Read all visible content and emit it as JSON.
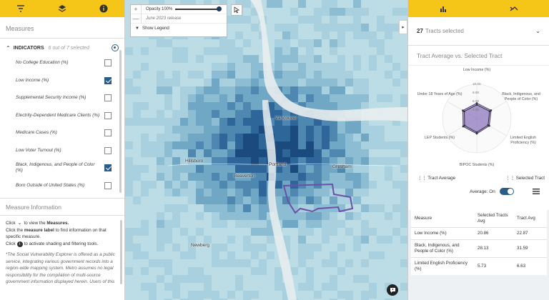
{
  "left": {
    "measures_title": "Measures",
    "indicators_title": "INDICATORS",
    "indicators_count": "6 out of 7 selected",
    "indicators": [
      {
        "label": "No College Education (%)",
        "checked": false
      },
      {
        "label": "Low Income (%)",
        "checked": true
      },
      {
        "label": "Supplemental Security Income (%)",
        "checked": false
      },
      {
        "label": "Electrity-Dependent Medicare Clients (%)",
        "checked": false
      },
      {
        "label": "Medicare Cases (%)",
        "checked": false
      },
      {
        "label": "Low Voter Turnout (%)",
        "checked": false
      },
      {
        "label": "Black, Indigenous, and People of Color (%)",
        "checked": true
      },
      {
        "label": "Born Outside of United States (%)",
        "checked": false
      }
    ],
    "measure_info": {
      "title": "Measure Information",
      "line1_pre": "Click",
      "line1_post": "to view the",
      "line1_bold": "Measures.",
      "line2_pre": "Click the",
      "line2_bold": "measure label",
      "line2_post": "to find information on that specific measure.",
      "line3_pre": "Click",
      "line3_post": "to activate shading and filtering tools.",
      "italic": "*The Social Vulnerability Explorer is offered as a public service, integrating various government records into a region-wide mapping system. Metro assumes no legal responsibility for the compilation of multi-source government information displayed herein. Users of this"
    }
  },
  "map": {
    "opacity_label": "Opacity 100%",
    "release": "June 2023 release",
    "show_legend": "Show Legend",
    "cities": [
      {
        "name": "Vancouver"
      },
      {
        "name": "Hillsboro"
      },
      {
        "name": "Beaverton"
      },
      {
        "name": "Portland"
      },
      {
        "name": "Gresham"
      },
      {
        "name": "Newberg"
      }
    ]
  },
  "right": {
    "tracts_count": "27",
    "tracts_label": "Tracts selected",
    "chart_title": "Tract Average vs. Selected Tract",
    "radar_labels": [
      "Low Income (%)",
      "Black, Indigenous, and People of Color (%)",
      "Limited English Proficiency (%)",
      "BIPOC Students (%)",
      "LEP Students (%)",
      "Under 18 Years of Age (%)"
    ],
    "radar_ticks": [
      "10.00",
      "8.00",
      "6.00",
      "4.00"
    ],
    "legend_tract_avg": "Tract Average",
    "legend_selected": "Selected Tract",
    "average_label": "Average: On",
    "table": {
      "headers": [
        "Measure",
        "Selected Tracts Avg",
        "Tract Avg"
      ],
      "rows": [
        [
          "Low Income (%)",
          "20.86",
          "22.87"
        ],
        [
          "Black, Indigenous, and People of Color (%)",
          "28.13",
          "31.59"
        ],
        [
          "Limited English Proficiency (%)",
          "5.73",
          "6.63"
        ]
      ]
    }
  },
  "colors": {
    "accent": "#f5c518",
    "primary": "#2a5d8a",
    "map_water": "#9cc6d6",
    "selection": "#6b4fa8"
  }
}
